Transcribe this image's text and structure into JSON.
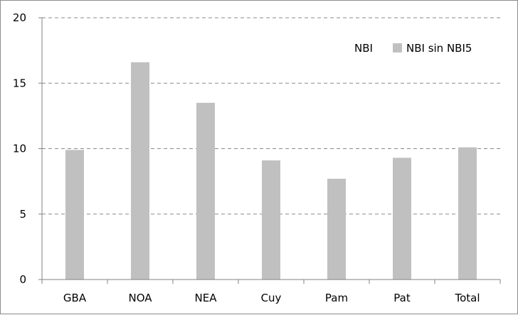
{
  "chart_data": {
    "type": "bar",
    "categories": [
      "GBA",
      "NOA",
      "NEA",
      "Cuy",
      "Pam",
      "Pat",
      "Total"
    ],
    "series": [
      {
        "name": "NBI",
        "values": [
          null,
          null,
          null,
          null,
          null,
          null,
          null
        ],
        "color": "#ffffff"
      },
      {
        "name": "NBI sin NBI5",
        "values": [
          9.9,
          16.6,
          13.5,
          9.1,
          7.7,
          9.3,
          10.1
        ],
        "color": "#c0c0c0"
      }
    ],
    "y_ticks": [
      "0",
      "5",
      "10",
      "15",
      "20"
    ],
    "ylim": [
      0,
      20
    ],
    "grid": true,
    "grid_style": "dashed",
    "legend_position": "top-right",
    "title": "",
    "xlabel": "",
    "ylabel": ""
  }
}
